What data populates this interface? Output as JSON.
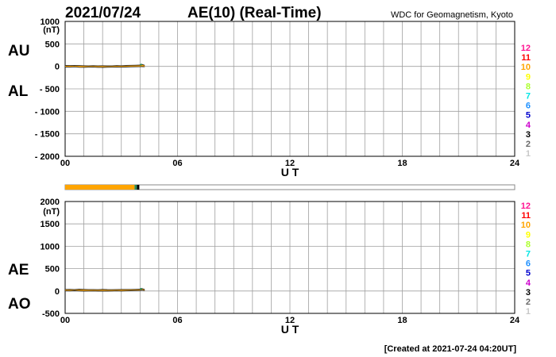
{
  "header": {
    "date": "2021/07/24",
    "title": "AE(10) (Real-Time)",
    "source": "WDC for Geomagnetism, Kyoto"
  },
  "footer": {
    "created": "[Created at 2021-07-24 04:20UT]"
  },
  "legend_levels": [
    "12",
    "11",
    "10",
    "9",
    "8",
    "7",
    "6",
    "5",
    "4",
    "3",
    "2",
    "1"
  ],
  "legend_colors": [
    "#ff1493",
    "#ff0000",
    "#ffa500",
    "#ffff00",
    "#adff2f",
    "#00e5e5",
    "#1e90ff",
    "#0000cd",
    "#cc00cc",
    "#000000",
    "#696969",
    "#c8c8c8"
  ],
  "status_bar": {
    "fraction_complete": 0.165,
    "colors": [
      "#ffa500",
      "#2e8b57",
      "#000000"
    ]
  },
  "chart_data": [
    {
      "type": "line",
      "panel": "AU/AL",
      "side_labels": [
        "AU",
        "AL"
      ],
      "unit": "(nT)",
      "xlabel": "U T",
      "xlim": [
        0,
        24
      ],
      "xticks": [
        "00",
        "06",
        "12",
        "18",
        "24"
      ],
      "ylim": [
        -2000,
        1000
      ],
      "yticks": [
        "1000",
        "500",
        "0",
        "- 500",
        "- 1000",
        "- 1500",
        "- 2000"
      ],
      "grid": true,
      "x": [
        0,
        0.25,
        0.5,
        0.75,
        1,
        1.25,
        1.5,
        1.75,
        2,
        2.25,
        2.5,
        2.75,
        3,
        3.25,
        3.5,
        3.75,
        4,
        4.1,
        4.25
      ],
      "series": [
        {
          "color": "#ffa500",
          "values": [
            20,
            18,
            22,
            19,
            16,
            14,
            17,
            13,
            15,
            12,
            14,
            18,
            16,
            20,
            24,
            26,
            30,
            45,
            25
          ]
        },
        {
          "color": "#ffa500",
          "values": [
            -15,
            -18,
            -12,
            -20,
            -22,
            -19,
            -17,
            -21,
            -24,
            -20,
            -18,
            -16,
            -19,
            -15,
            -12,
            -10,
            -8,
            -5,
            -10
          ]
        }
      ]
    },
    {
      "type": "line",
      "panel": "AE/AO",
      "side_labels": [
        "AE",
        "AO"
      ],
      "unit": "(nT)",
      "xlabel": "U T",
      "xlim": [
        0,
        24
      ],
      "xticks": [
        "00",
        "06",
        "12",
        "18",
        "24"
      ],
      "ylim": [
        -500,
        2000
      ],
      "yticks": [
        "2000",
        "1500",
        "1000",
        "500",
        "0",
        "-500"
      ],
      "grid": true,
      "x": [
        0,
        0.25,
        0.5,
        0.75,
        1,
        1.25,
        1.5,
        1.75,
        2,
        2.25,
        2.5,
        2.75,
        3,
        3.25,
        3.5,
        3.75,
        4,
        4.1,
        4.25
      ],
      "series": [
        {
          "color": "#ffa500",
          "values": [
            35,
            38,
            32,
            40,
            37,
            33,
            34,
            30,
            38,
            32,
            31,
            34,
            35,
            35,
            36,
            38,
            40,
            55,
            35
          ]
        },
        {
          "color": "#000000",
          "values": [
            2,
            0,
            5,
            0,
            -3,
            -2,
            0,
            -4,
            -4,
            -4,
            -2,
            1,
            -1,
            2,
            6,
            8,
            11,
            20,
            8
          ]
        }
      ]
    }
  ]
}
